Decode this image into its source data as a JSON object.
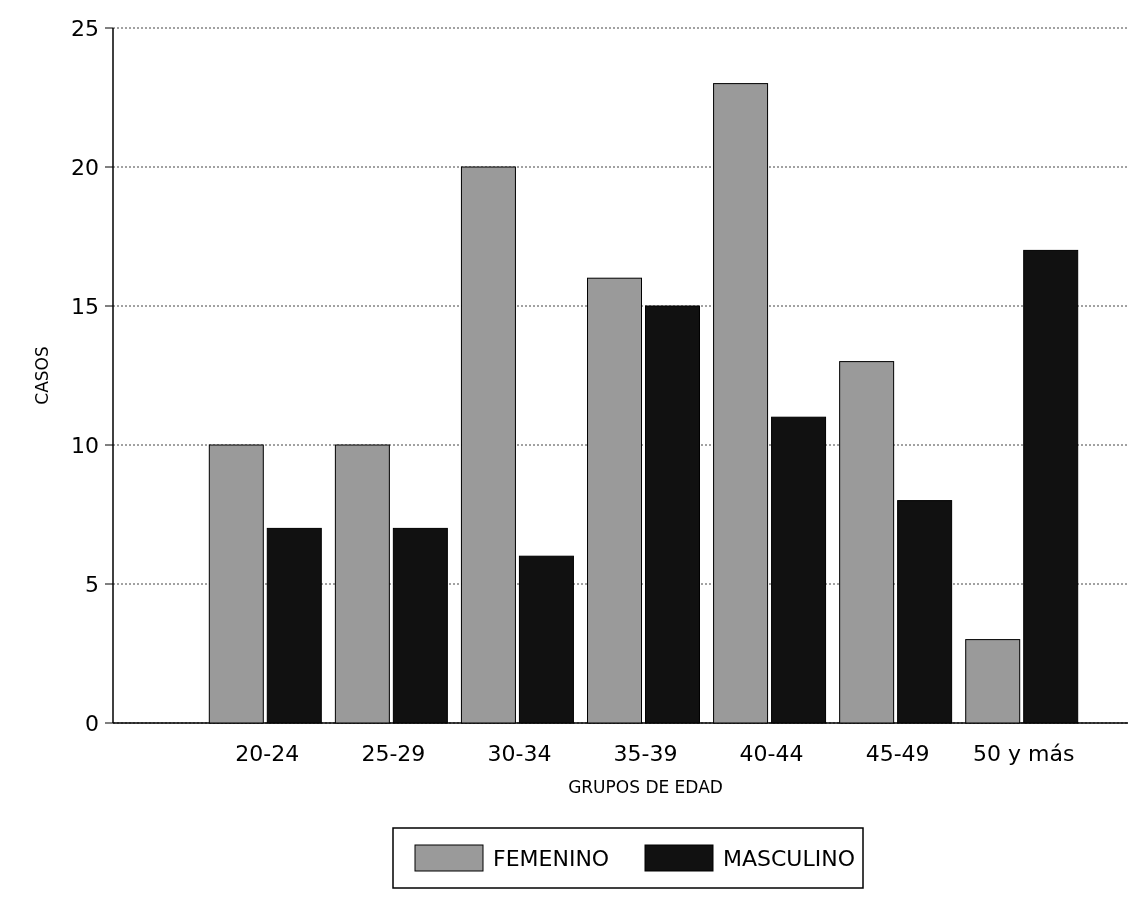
{
  "chart_data": {
    "type": "bar",
    "xlabel": "GRUPOS DE EDAD",
    "ylabel": "CASOS",
    "categories": [
      "20-24",
      "25-29",
      "30-34",
      "35-39",
      "40-44",
      "45-49",
      "50 y más"
    ],
    "series": [
      {
        "name": "FEMENINO",
        "color": "#9a9a9a",
        "values": [
          10,
          10,
          20,
          16,
          23,
          13,
          3
        ]
      },
      {
        "name": "MASCULINO",
        "color": "#111111",
        "values": [
          7,
          7,
          6,
          15,
          11,
          8,
          17
        ]
      }
    ],
    "ylim": [
      0,
      25
    ],
    "yticks": [
      0,
      5,
      10,
      15,
      20,
      25
    ],
    "grid": "y",
    "legend": "bottom"
  }
}
